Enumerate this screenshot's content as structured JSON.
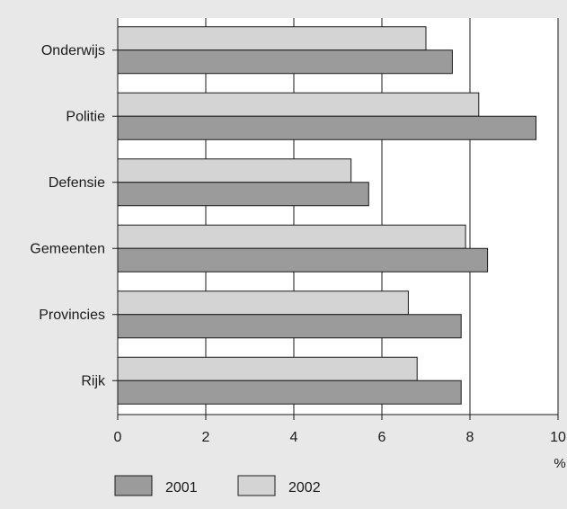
{
  "chart_data": {
    "type": "bar",
    "orientation": "horizontal",
    "categories": [
      "Onderwijs",
      "Politie",
      "Defensie",
      "Gemeenten",
      "Provincies",
      "Rijk"
    ],
    "series": [
      {
        "name": "2002",
        "values": [
          7.0,
          8.2,
          5.3,
          7.9,
          6.6,
          6.8
        ],
        "color": "#d4d4d4"
      },
      {
        "name": "2001",
        "values": [
          7.6,
          9.5,
          5.7,
          8.4,
          7.8,
          7.8
        ],
        "color": "#9b9b9b"
      }
    ],
    "xlim": [
      0,
      10
    ],
    "x_ticks": [
      "0",
      "2",
      "4",
      "6",
      "8",
      "10"
    ],
    "x_unit": "%",
    "grid": "vertical",
    "legend_position": "bottom-left",
    "legend": [
      {
        "label": "2001",
        "color": "#9b9b9b"
      },
      {
        "label": "2002",
        "color": "#d4d4d4"
      }
    ],
    "colors": {
      "background": "#e8e8e8",
      "plot_background": "#ffffff",
      "axis": "#1a1a1a"
    }
  }
}
